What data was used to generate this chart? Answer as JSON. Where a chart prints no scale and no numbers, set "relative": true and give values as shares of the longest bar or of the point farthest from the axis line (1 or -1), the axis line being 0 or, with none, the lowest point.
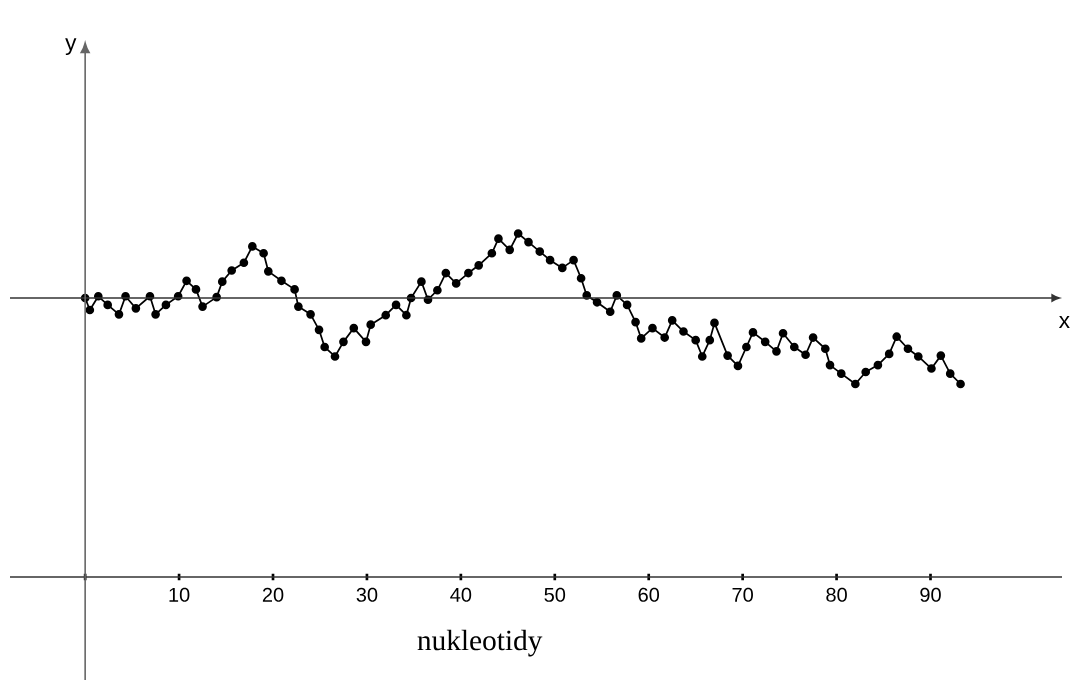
{
  "chart_data": {
    "type": "line",
    "relative": true,
    "xlabel": "nukleotidy",
    "annotations": [
      "y",
      "x"
    ],
    "x": [
      0,
      0.5,
      1.4,
      2.4,
      3.6,
      4.3,
      5.4,
      6.9,
      7.5,
      8.6,
      9.9,
      10.8,
      11.8,
      12.5,
      14.0,
      14.6,
      15.6,
      16.9,
      17.8,
      19.0,
      19.5,
      20.9,
      22.3,
      22.7,
      24.0,
      24.9,
      25.5,
      26.6,
      27.5,
      28.6,
      29.9,
      30.4,
      32.0,
      33.1,
      34.2,
      34.7,
      35.8,
      36.5,
      37.5,
      38.4,
      39.5,
      40.8,
      41.9,
      43.3,
      44.0,
      45.2,
      46.1,
      47.2,
      48.4,
      49.5,
      50.8,
      52.0,
      52.8,
      53.4,
      54.5,
      55.9,
      56.6,
      57.7,
      58.6,
      59.2,
      60.4,
      61.7,
      62.5,
      63.7,
      65.0,
      65.7,
      66.5,
      67.0,
      68.4,
      69.5,
      70.4,
      71.1,
      72.4,
      73.6,
      74.3,
      75.5,
      76.7,
      77.5,
      78.8,
      79.3,
      80.5,
      82.0,
      83.1,
      84.4,
      85.6,
      86.4,
      87.6,
      88.7,
      90.1,
      91.1,
      92.1,
      93.2
    ],
    "values": [
      0,
      -0.14,
      0.02,
      -0.08,
      -0.19,
      0.02,
      -0.12,
      0.02,
      -0.19,
      -0.08,
      0.02,
      0.2,
      0.1,
      -0.1,
      0.01,
      0.19,
      0.32,
      0.41,
      0.6,
      0.52,
      0.31,
      0.2,
      0.1,
      -0.1,
      -0.19,
      -0.37,
      -0.57,
      -0.68,
      -0.51,
      -0.35,
      -0.51,
      -0.31,
      -0.2,
      -0.08,
      -0.2,
      0,
      0.19,
      -0.02,
      0.09,
      0.29,
      0.17,
      0.29,
      0.38,
      0.52,
      0.69,
      0.56,
      0.75,
      0.65,
      0.54,
      0.44,
      0.35,
      0.44,
      0.23,
      0.03,
      -0.05,
      -0.16,
      0.03,
      -0.08,
      -0.28,
      -0.47,
      -0.35,
      -0.46,
      -0.26,
      -0.39,
      -0.49,
      -0.68,
      -0.49,
      -0.29,
      -0.67,
      -0.79,
      -0.57,
      -0.4,
      -0.51,
      -0.62,
      -0.41,
      -0.57,
      -0.66,
      -0.46,
      -0.59,
      -0.78,
      -0.88,
      -1,
      -0.86,
      -0.78,
      -0.65,
      -0.45,
      -0.59,
      -0.68,
      -0.82,
      -0.67,
      -0.88,
      -1
    ],
    "color": "#000000",
    "marker": "circle",
    "line_style": "solid",
    "xlim": [
      -8,
      104
    ],
    "xticks": [
      {
        "value": 0,
        "label": null
      },
      10,
      20,
      30,
      40,
      50,
      60,
      70,
      80,
      90
    ]
  }
}
